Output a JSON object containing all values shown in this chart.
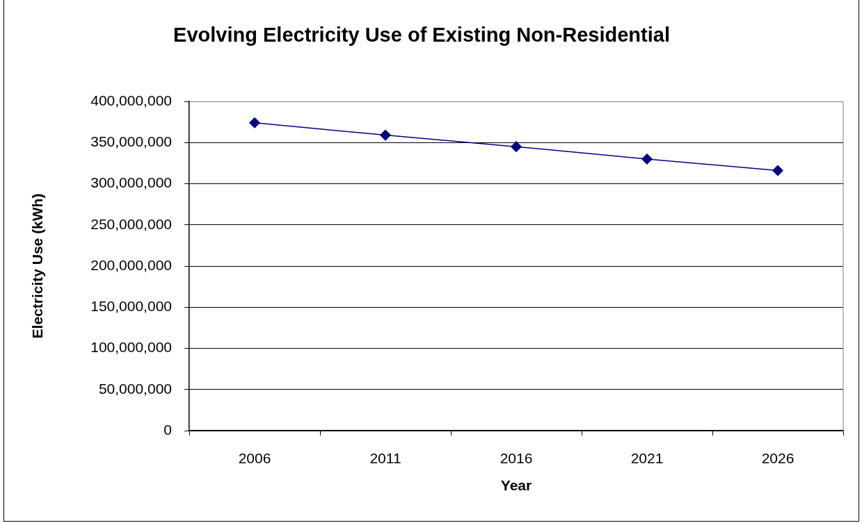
{
  "chart_data": {
    "type": "line",
    "title": "Evolving Electricity Use of Existing Non-Residential",
    "xlabel": "Year",
    "ylabel": "Electricity Use (kWh)",
    "categories": [
      "2006",
      "2011",
      "2016",
      "2021",
      "2026"
    ],
    "series": [
      {
        "color": "#000080",
        "values": [
          374000000,
          359000000,
          345000000,
          330000000,
          316000000
        ]
      }
    ],
    "ylim": [
      0,
      400000000
    ],
    "yticks": [
      0,
      {
        "value": 50000000,
        "label": "50,000,000"
      },
      {
        "value": 100000000,
        "label": "100,000,000"
      },
      {
        "value": 150000000,
        "label": "150,000,000"
      },
      {
        "value": 200000000,
        "label": "200,000,000"
      },
      {
        "value": 250000000,
        "label": "250,000,000"
      },
      {
        "value": 300000000,
        "label": "300,000,000"
      },
      {
        "value": 350000000,
        "label": "350,000,000"
      },
      {
        "value": 400000000,
        "label": "400,000,000"
      }
    ],
    "grid": "y",
    "marker": "diamond"
  }
}
